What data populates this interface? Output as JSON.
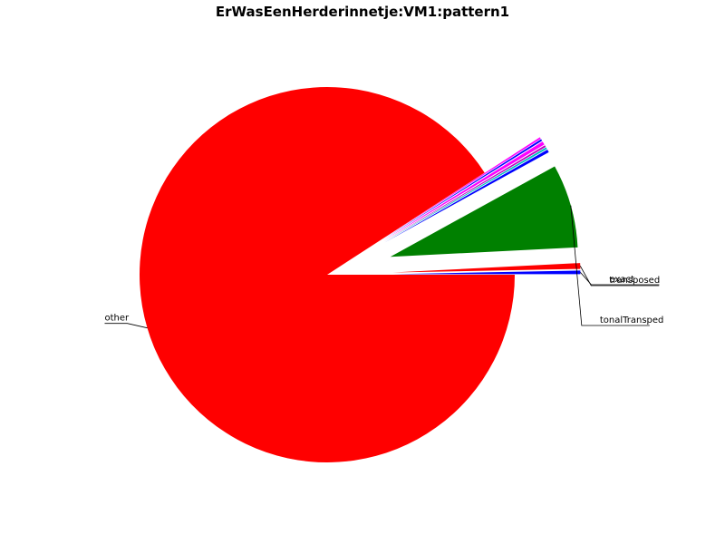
{
  "chart_data": {
    "type": "pie",
    "title": "ErWasEenHerderinnetje:VM1:pattern1",
    "slices": [
      {
        "label": "exact",
        "value": 0.3,
        "color": "#0000ff",
        "explode": true
      },
      {
        "label": "transposed",
        "value": 0.5,
        "color": "#ff0000",
        "explode": true
      },
      {
        "label": "tonalTransped",
        "value": 7.2,
        "color": "#008000",
        "explode": true
      },
      {
        "label": "",
        "value": 0.25,
        "color": "#0000ff",
        "explode": true
      },
      {
        "label": "",
        "value": 0.15,
        "color": "#00bfbf",
        "explode": true
      },
      {
        "label": "",
        "value": 0.15,
        "color": "#bf00bf",
        "explode": true
      },
      {
        "label": "",
        "value": 0.3,
        "color": "#ff00ff",
        "explode": true
      },
      {
        "label": "",
        "value": 0.15,
        "color": "#0000ff",
        "explode": true
      },
      {
        "label": "",
        "value": 0.15,
        "color": "#ff00ff",
        "explode": true
      },
      {
        "label": "other",
        "value": 90.85,
        "color": "#ff0000",
        "explode": false
      }
    ]
  }
}
